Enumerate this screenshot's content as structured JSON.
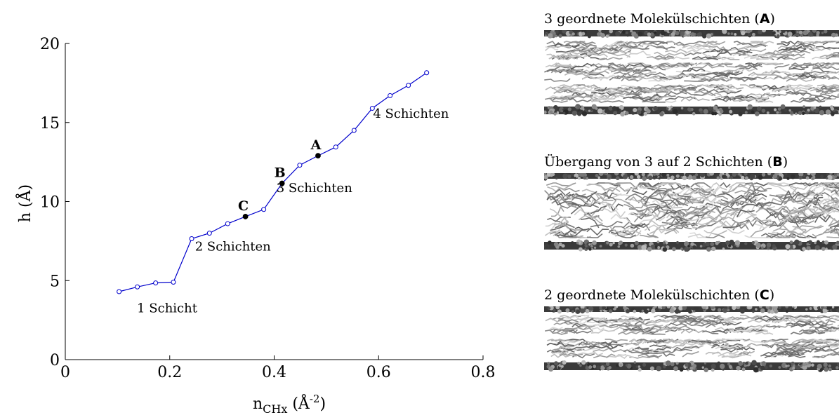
{
  "chart_data": {
    "type": "line",
    "xlim": [
      0,
      0.8
    ],
    "ylim": [
      0,
      20
    ],
    "xticks": [
      0,
      0.2,
      0.4,
      0.6,
      0.8
    ],
    "yticks": [
      0,
      5,
      10,
      15,
      20
    ],
    "xtick_labels": [
      "0",
      "0.2",
      "0.4",
      "0.6",
      "0.8"
    ],
    "ytick_labels": [
      "0",
      "5",
      "10",
      "15",
      "20"
    ],
    "xlabel": "n",
    "xlabel_sub": "CHx",
    "xlabel_unit_open": " (Å",
    "xlabel_sup": "-2",
    "xlabel_unit_close": ")",
    "ylabel": "h (Å)",
    "grid": false,
    "series": [
      {
        "color": "#0000cc",
        "points": [
          {
            "x": 0.103,
            "y": 4.3
          },
          {
            "x": 0.138,
            "y": 4.6
          },
          {
            "x": 0.173,
            "y": 4.85
          },
          {
            "x": 0.207,
            "y": 4.9
          },
          {
            "x": 0.242,
            "y": 7.65
          },
          {
            "x": 0.276,
            "y": 8.0
          },
          {
            "x": 0.311,
            "y": 8.6
          },
          {
            "x": 0.345,
            "y": 9.05,
            "highlight": true,
            "label": "C"
          },
          {
            "x": 0.38,
            "y": 9.5
          },
          {
            "x": 0.415,
            "y": 11.15,
            "highlight": true,
            "label": "B"
          },
          {
            "x": 0.449,
            "y": 12.3
          },
          {
            "x": 0.484,
            "y": 12.9,
            "highlight": true,
            "label": "A"
          },
          {
            "x": 0.518,
            "y": 13.45
          },
          {
            "x": 0.553,
            "y": 14.5
          },
          {
            "x": 0.588,
            "y": 15.9
          },
          {
            "x": 0.622,
            "y": 16.7
          },
          {
            "x": 0.657,
            "y": 17.35
          },
          {
            "x": 0.692,
            "y": 18.15
          }
        ]
      }
    ],
    "annotations": [
      {
        "text": "1 Schicht",
        "x": 0.195,
        "y": 3.0
      },
      {
        "text": "2 Schichten",
        "x": 0.321,
        "y": 6.9
      },
      {
        "text": "3 Schichten",
        "x": 0.477,
        "y": 10.6
      },
      {
        "text": "4 Schichten",
        "x": 0.662,
        "y": 15.3
      }
    ]
  },
  "panels": [
    {
      "title_prefix": "3 geordnete Molekülschichten (",
      "title_bold": "A",
      "title_suffix": ")",
      "structure": "three-ordered-layers"
    },
    {
      "title_prefix": "Übergang von 3 auf 2 Schichten (",
      "title_bold": "B",
      "title_suffix": ")",
      "structure": "disordered-transition"
    },
    {
      "title_prefix": "2 geordnete Molekülschichten (",
      "title_bold": "C",
      "title_suffix": ")",
      "structure": "two-ordered-layers"
    }
  ]
}
